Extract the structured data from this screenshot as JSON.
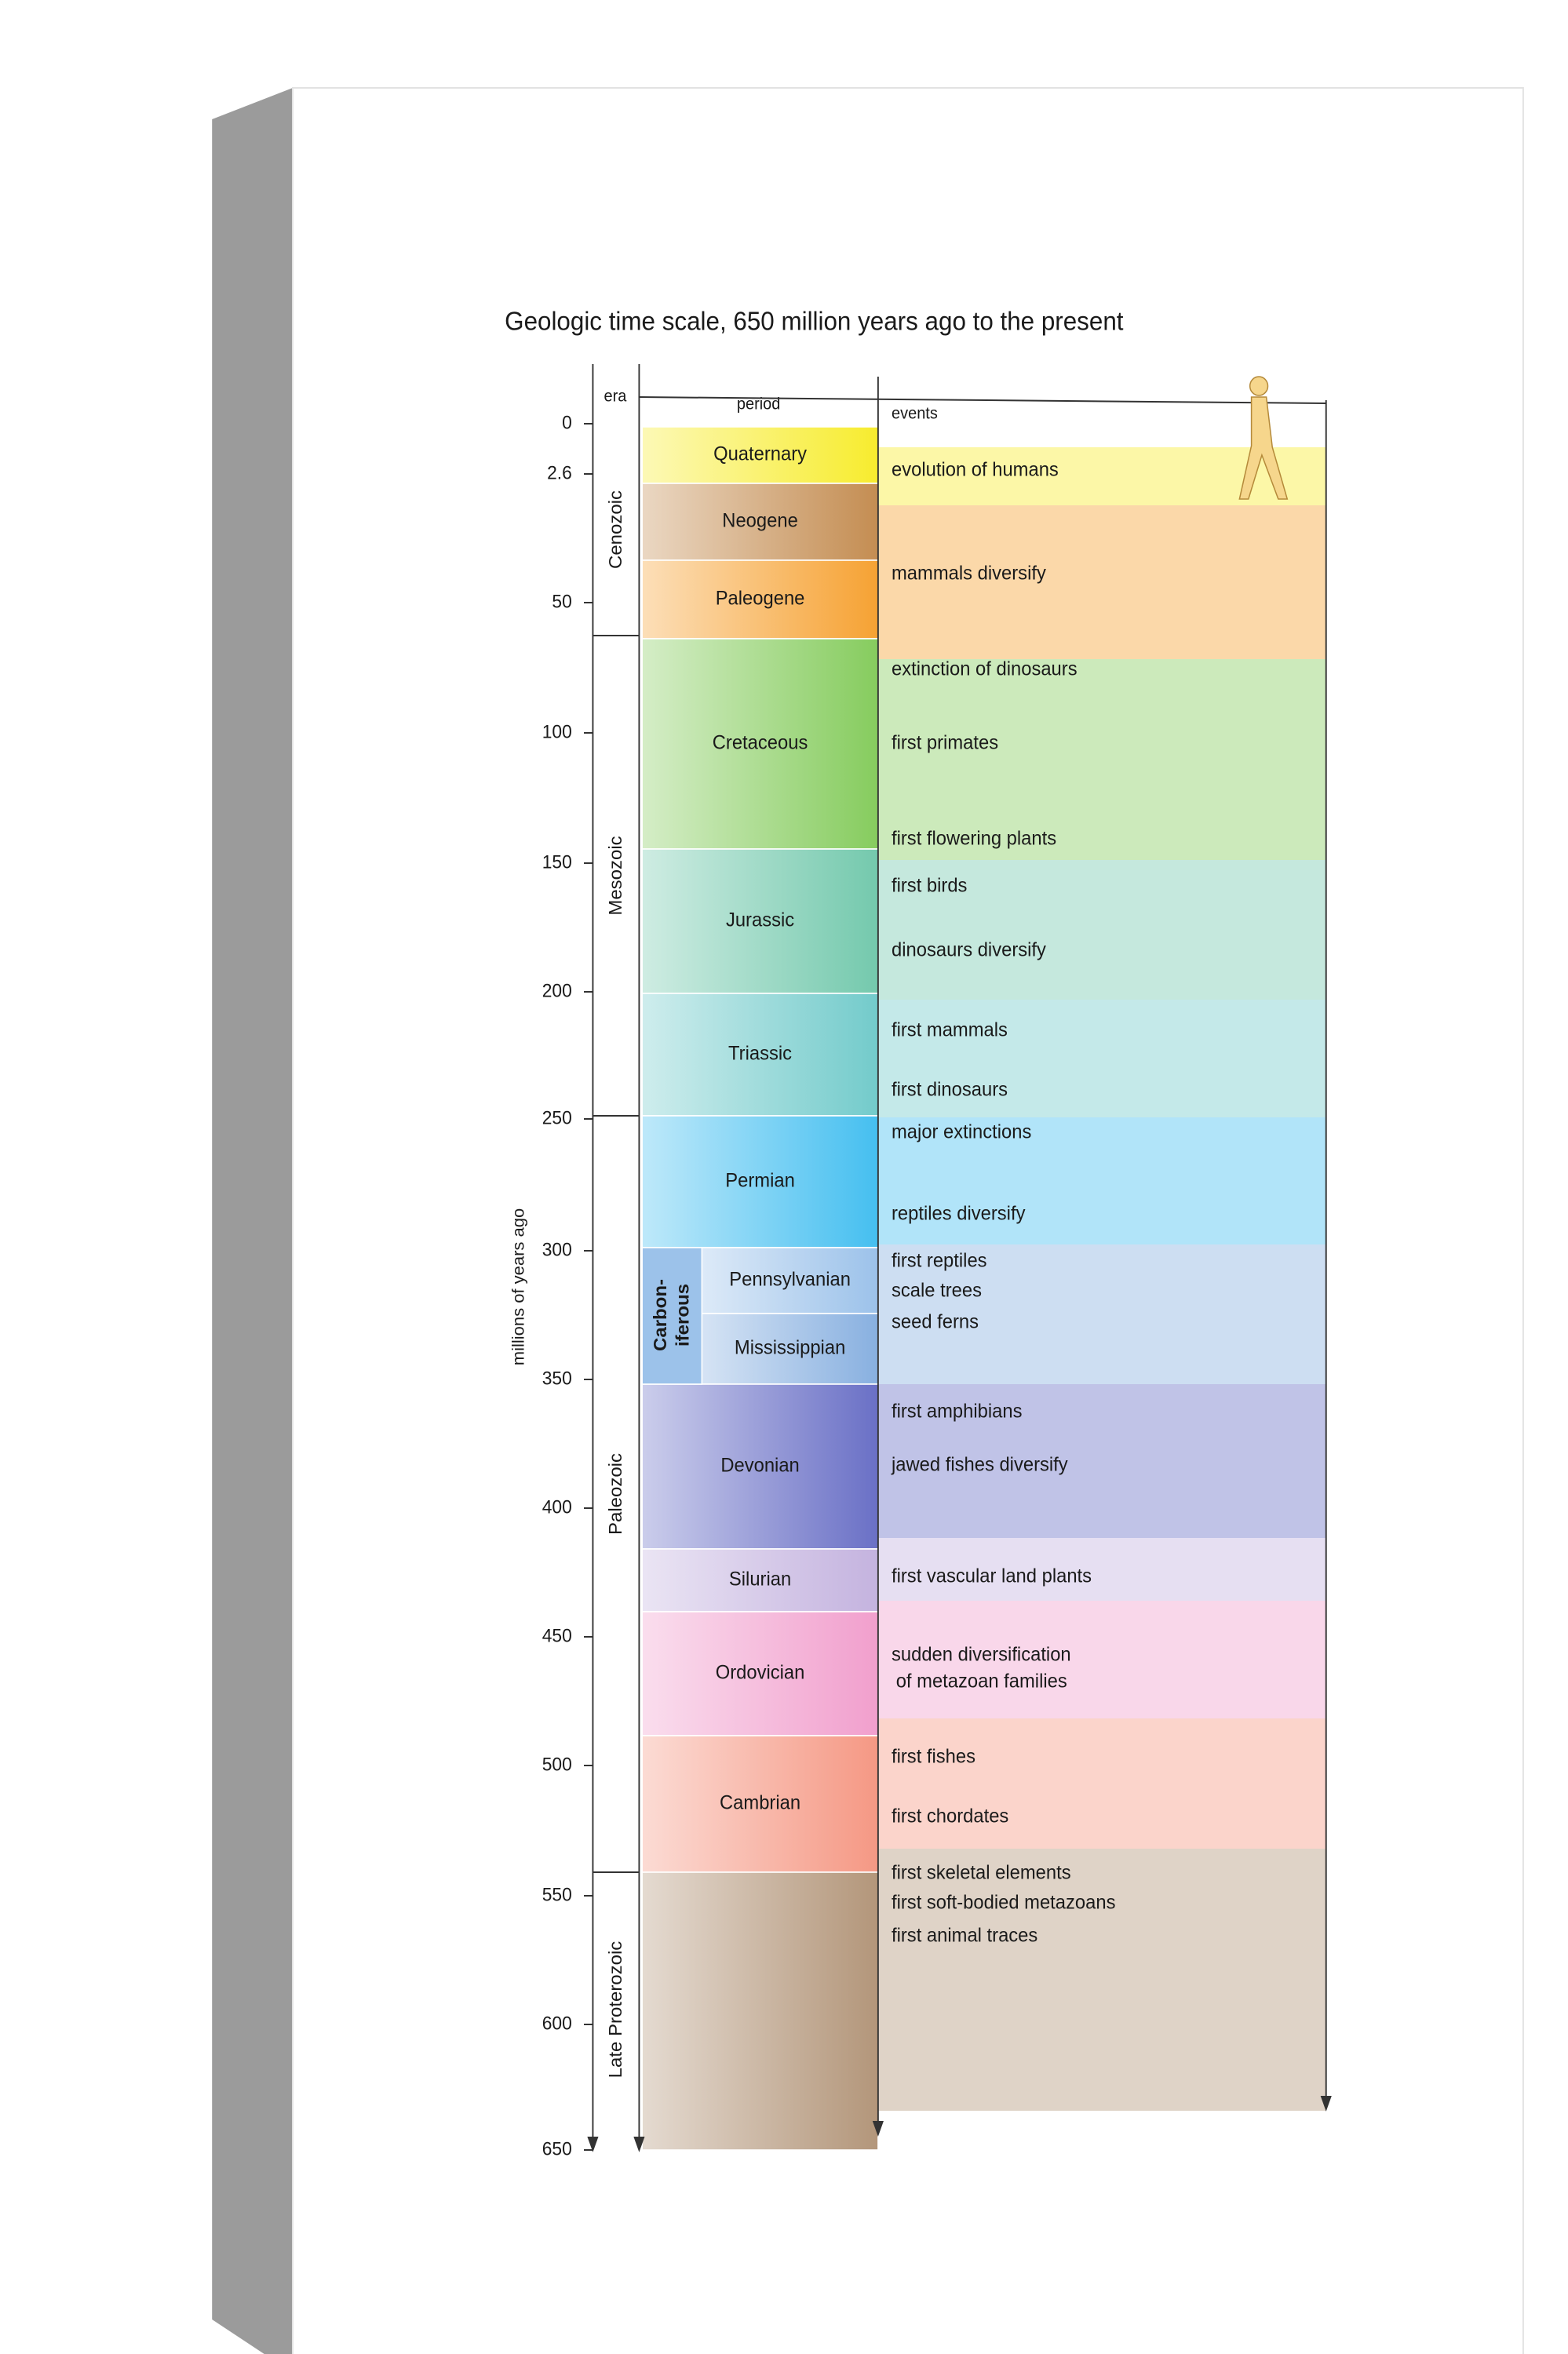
{
  "title": "Geologic time scale, 650 million years ago to the present",
  "axis_label": "millions of years ago",
  "headers": {
    "era": "era",
    "period": "period",
    "events": "events"
  },
  "ticks": [
    0,
    2.6,
    50,
    100,
    150,
    200,
    250,
    300,
    350,
    400,
    450,
    500,
    550,
    600,
    650
  ],
  "eras": [
    "Cenozoic",
    "Mesozoic",
    "Paleozoic",
    "Late Proterozoic"
  ],
  "periods": [
    {
      "name": "Quaternary",
      "color": "#f7ec2e"
    },
    {
      "name": "Neogene",
      "color": "#c48d52"
    },
    {
      "name": "Paleogene",
      "color": "#f6a233"
    },
    {
      "name": "Cretaceous",
      "color": "#86cc5e"
    },
    {
      "name": "Jurassic",
      "color": "#74c9ad"
    },
    {
      "name": "Triassic",
      "color": "#73cbcb"
    },
    {
      "name": "Permian",
      "color": "#45bff0"
    },
    {
      "name": "Pennsylvanian",
      "color": "#9cc2ea"
    },
    {
      "name": "Mississippian",
      "color": "#88b0e0"
    },
    {
      "name": "Devonian",
      "color": "#6a70c6"
    },
    {
      "name": "Silurian",
      "color": "#c4b3df"
    },
    {
      "name": "Ordovician",
      "color": "#f19fcd"
    },
    {
      "name": "Cambrian",
      "color": "#f59884"
    },
    {
      "color": "#b3967a"
    }
  ],
  "carboniferous": [
    "Carbon-",
    "iferous"
  ],
  "events": [
    "evolution of humans",
    "mammals diversify",
    "extinction of dinosaurs",
    "first primates",
    "first flowering plants",
    "first birds",
    "dinosaurs diversify",
    "first mammals",
    "first dinosaurs",
    "major extinctions",
    "reptiles diversify",
    "first reptiles",
    "scale trees",
    "seed ferns",
    "first amphibians",
    "jawed fishes diversify",
    "first vascular land plants",
    "sudden diversification",
    "of metazoan families",
    "first fishes",
    "first chordates",
    "first skeletal elements",
    "first soft-bodied metazoans",
    "first animal traces"
  ]
}
